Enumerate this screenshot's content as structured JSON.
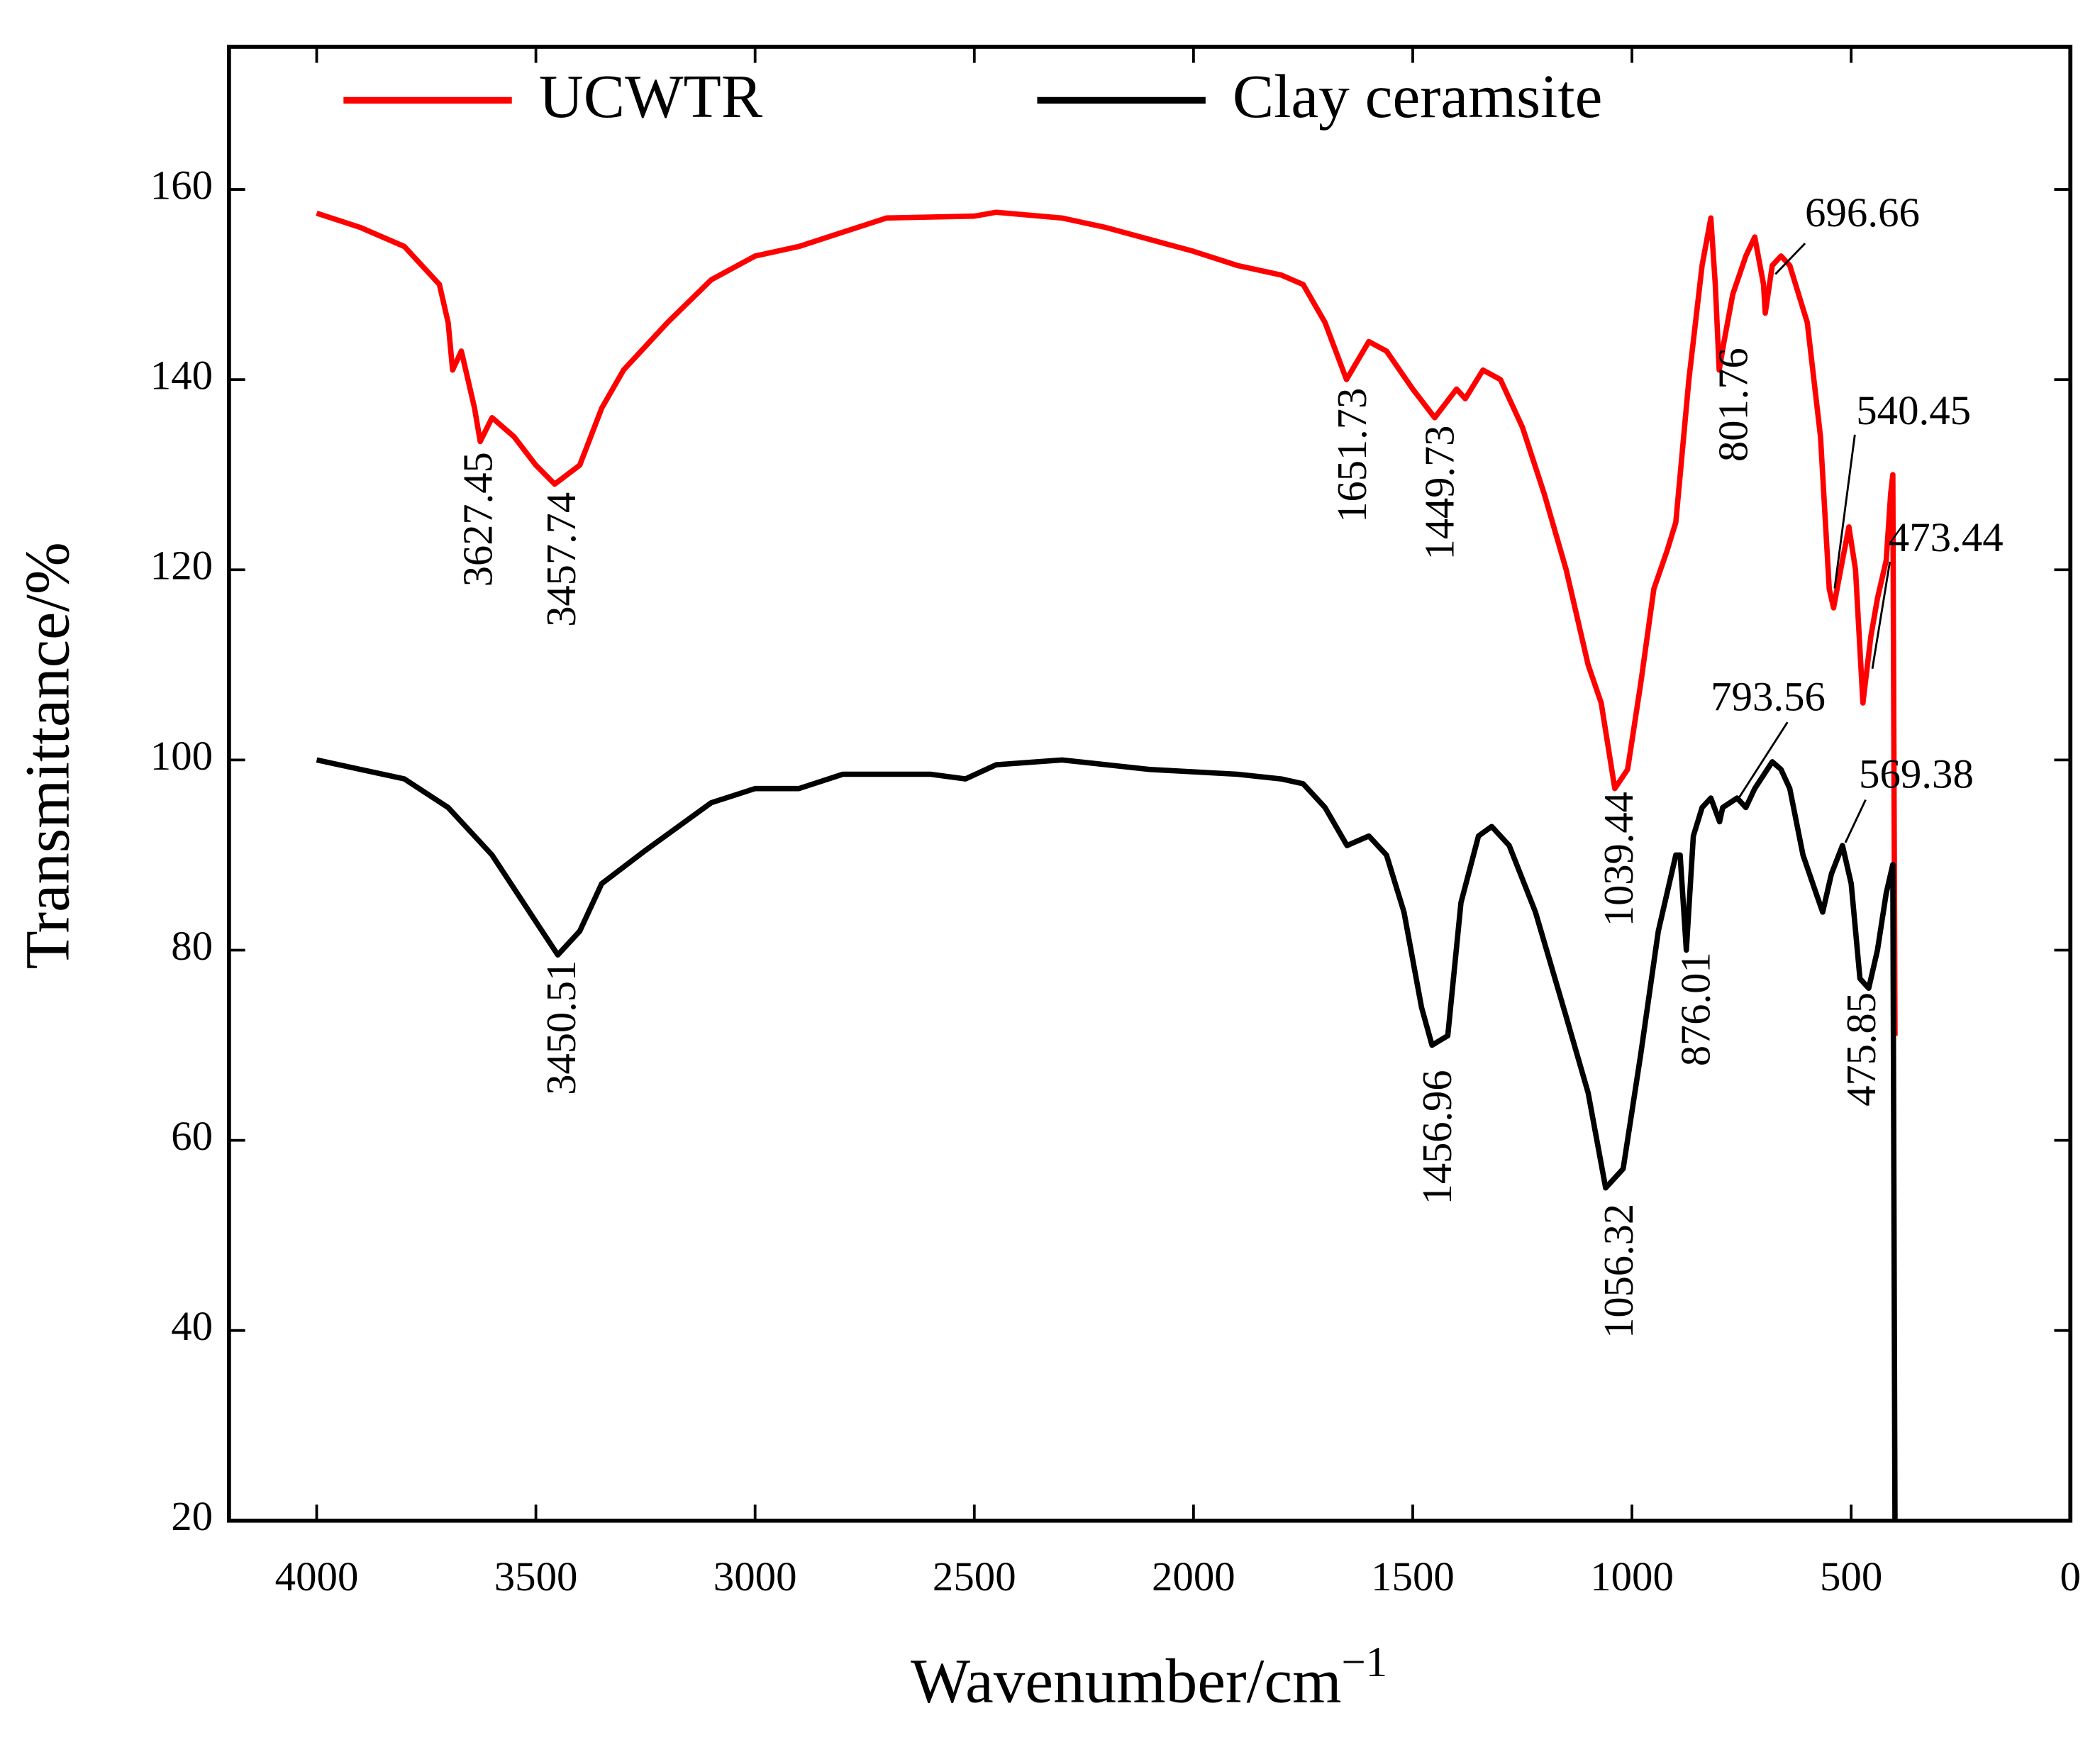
{
  "chart_data": {
    "type": "line",
    "xlabel": "Wavenumber/cm",
    "xlabel_superscript": "−1",
    "ylabel": "Transmittance/%",
    "xlim": [
      4200,
      0
    ],
    "ylim": [
      20,
      175
    ],
    "xticks": [
      4000,
      3500,
      3000,
      2500,
      2000,
      1500,
      1000,
      500,
      0
    ],
    "yticks": [
      20,
      40,
      60,
      80,
      100,
      120,
      140,
      160
    ],
    "legend": "top",
    "series": [
      {
        "name": "UCWTR",
        "color": "#ff0000",
        "x": [
          4000,
          3900,
          3800,
          3720,
          3700,
          3690,
          3670,
          3640,
          3627,
          3600,
          3550,
          3500,
          3457,
          3400,
          3350,
          3300,
          3200,
          3100,
          3000,
          2900,
          2800,
          2700,
          2500,
          2450,
          2300,
          2200,
          2000,
          1900,
          1800,
          1750,
          1700,
          1651,
          1600,
          1560,
          1500,
          1450,
          1400,
          1380,
          1340,
          1300,
          1250,
          1200,
          1150,
          1100,
          1070,
          1039,
          1010,
          980,
          950,
          920,
          900,
          870,
          840,
          820,
          810,
          801,
          790,
          770,
          740,
          720,
          700,
          696,
          680,
          660,
          640,
          600,
          570,
          550,
          540,
          520,
          505,
          490,
          473,
          455,
          440,
          420,
          410,
          405,
          400
        ],
        "values": [
          157.5,
          156,
          154,
          150,
          146,
          141,
          143,
          137,
          133.5,
          136,
          134,
          131,
          129,
          131,
          137,
          141,
          146,
          150.5,
          153,
          154,
          155.5,
          157,
          157.2,
          157.6,
          157,
          156,
          153.5,
          152,
          151,
          150,
          146,
          140,
          144,
          143,
          139,
          136,
          139,
          138,
          141,
          140,
          135,
          128,
          120,
          110,
          106,
          97,
          99,
          108,
          118,
          122,
          125,
          140,
          152,
          157,
          150,
          141,
          144,
          149,
          153,
          155,
          150,
          147,
          152,
          153,
          152,
          146,
          134,
          118,
          116,
          121,
          124.5,
          120,
          106,
          113,
          117,
          121,
          128,
          130,
          71
        ]
      },
      {
        "name": "Clay ceramsite",
        "color": "#000000",
        "x": [
          4000,
          3900,
          3800,
          3700,
          3600,
          3500,
          3450,
          3400,
          3350,
          3250,
          3100,
          3000,
          2900,
          2800,
          2600,
          2520,
          2450,
          2300,
          2100,
          1900,
          1800,
          1750,
          1700,
          1650,
          1600,
          1560,
          1520,
          1480,
          1456,
          1420,
          1390,
          1350,
          1320,
          1280,
          1220,
          1150,
          1100,
          1060,
          1020,
          980,
          940,
          900,
          890,
          876,
          860,
          840,
          820,
          800,
          793,
          760,
          740,
          720,
          680,
          660,
          640,
          610,
          580,
          565,
          545,
          520,
          500,
          480,
          460,
          440,
          420,
          405,
          400
        ],
        "values": [
          100,
          99,
          98,
          95,
          90,
          83,
          79.5,
          82,
          87,
          90.5,
          95.5,
          97,
          97,
          98.5,
          98.5,
          98,
          99.5,
          100,
          99,
          98.5,
          98,
          97.5,
          95,
          91,
          92,
          90,
          84,
          74,
          70,
          71,
          85,
          92,
          93,
          91,
          84,
          73,
          65,
          55,
          57,
          69,
          82,
          90,
          90,
          80,
          92,
          95,
          96,
          93.5,
          95,
          96,
          95,
          97,
          99.8,
          99,
          97,
          90,
          86,
          84,
          88,
          91,
          87,
          77,
          76,
          80,
          86,
          89,
          20
        ]
      }
    ],
    "annotations": [
      "3627.45",
      "3457.74",
      "1651.73",
      "1449.73",
      "1039.44",
      "801.76",
      "696.66",
      "540.45",
      "473.44",
      "3450.51",
      "1456.96",
      "1056.32",
      "876.01",
      "793.56",
      "475.85",
      "569.38"
    ]
  }
}
